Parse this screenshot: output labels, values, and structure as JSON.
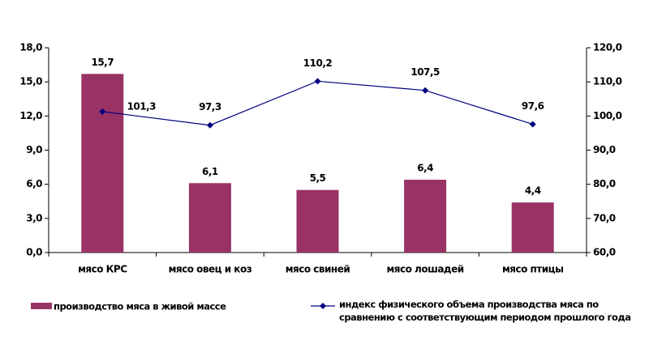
{
  "chart_data": {
    "type": "bar_line",
    "categories": [
      "мясо КРС",
      "мясо овец и коз",
      "мясо свиней",
      "мясо лошадей",
      "мясо птицы"
    ],
    "series": [
      {
        "name": "производство мяса в живой массе",
        "type": "bar",
        "color": "#993366",
        "values": [
          15.7,
          6.1,
          5.5,
          6.4,
          4.4
        ],
        "value_labels": [
          "15,7",
          "6,1",
          "5,5",
          "6,4",
          "4,4"
        ]
      },
      {
        "name": "индекс физического объема производства мяса  по сравнению с соответствующим  периодом прошлого года",
        "type": "line",
        "axis": "y2",
        "color": "#000080",
        "values": [
          101.3,
          97.3,
          110.2,
          107.5,
          97.6
        ],
        "value_labels": [
          "101,3",
          "97,3",
          "110,2",
          "107,5",
          "97,6"
        ]
      }
    ],
    "ylim": [
      0,
      18
    ],
    "yticks": [
      {
        "value": 0,
        "label": "0,0"
      },
      {
        "value": 3,
        "label": "3,0"
      },
      {
        "value": 6,
        "label": "6,0"
      },
      {
        "value": 9,
        "label": "9,0"
      },
      {
        "value": 12,
        "label": "12,0"
      },
      {
        "value": 15,
        "label": "15,0"
      },
      {
        "value": 18,
        "label": "18,0"
      }
    ],
    "y2lim": [
      60,
      120
    ],
    "y2ticks": [
      {
        "value": 60,
        "label": "60,0"
      },
      {
        "value": 70,
        "label": "70,0"
      },
      {
        "value": 80,
        "label": "80,0"
      },
      {
        "value": 90,
        "label": "90,0"
      },
      {
        "value": 100,
        "label": "100,0"
      },
      {
        "value": 110,
        "label": "110,0"
      },
      {
        "value": 120,
        "label": "120,0"
      }
    ],
    "grid": false,
    "legend": "bottom"
  }
}
